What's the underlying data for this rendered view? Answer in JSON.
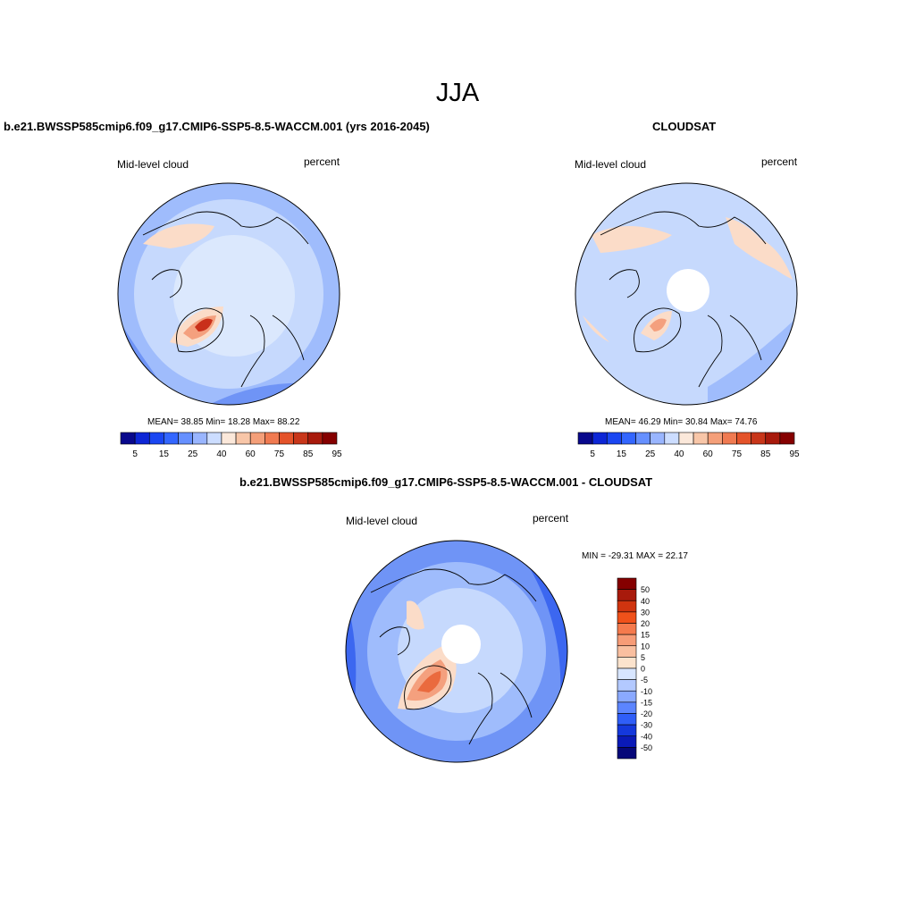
{
  "season": "JJA",
  "panels": [
    {
      "title": "b.e21.BWSSP585cmip6.f09_g17.CMIP6-SSP5-8.5-WACCM.001 (yrs 2016-2045)",
      "variable": "Mid-level cloud",
      "units": "percent",
      "stats": "MEAN=  38.85  Min=  18.28  Max=  88.22",
      "mean": 38.85,
      "min": 18.28,
      "max": 88.22
    },
    {
      "title": "CLOUDSAT",
      "variable": "Mid-level cloud",
      "units": "percent",
      "stats": "MEAN=  46.29  Min=  30.84  Max=  74.76",
      "mean": 46.29,
      "min": 30.84,
      "max": 74.76
    },
    {
      "title": "b.e21.BWSSP585cmip6.f09_g17.CMIP6-SSP5-8.5-WACCM.001 - CLOUDSAT",
      "variable": "Mid-level cloud",
      "units": "percent",
      "stats": "MIN = -29.31 MAX =  22.17",
      "min": -29.31,
      "max": 22.17
    }
  ],
  "colorbar_abs": {
    "labels": [
      "5",
      "15",
      "25",
      "40",
      "60",
      "75",
      "85",
      "95"
    ],
    "colors": [
      "#08088c",
      "#0d26d6",
      "#1a46f2",
      "#3366ff",
      "#6690ff",
      "#99b5ff",
      "#ccddff",
      "#fbe8da",
      "#f8c6a8",
      "#f49f79",
      "#f07a51",
      "#e4532a",
      "#c8361a",
      "#a81a0c",
      "#850000"
    ]
  },
  "colorbar_diff": {
    "labels": [
      "50",
      "40",
      "30",
      "20",
      "15",
      "10",
      "5",
      "0",
      "-5",
      "-10",
      "-15",
      "-20",
      "-30",
      "-40",
      "-50"
    ],
    "colors": [
      "#850000",
      "#a81a0c",
      "#d0340f",
      "#f0511a",
      "#f57a4d",
      "#f79c77",
      "#f9bfa0",
      "#fbe3cd",
      "#d8e6ff",
      "#b3c9ff",
      "#8aa9ff",
      "#5c85ff",
      "#2f5ef8",
      "#1438dc",
      "#0a1ab8",
      "#060879"
    ]
  },
  "map_colors": {
    "background": "#dbe8fd",
    "light_blue": "#c6d9fd",
    "mid_blue": "#9fbcfc",
    "blue": "#6f94f6",
    "deep_blue": "#3c67f0",
    "peach": "#fbdcc8",
    "salmon": "#f4a07e",
    "orange": "#ea6a3e",
    "red": "#c9301a"
  }
}
